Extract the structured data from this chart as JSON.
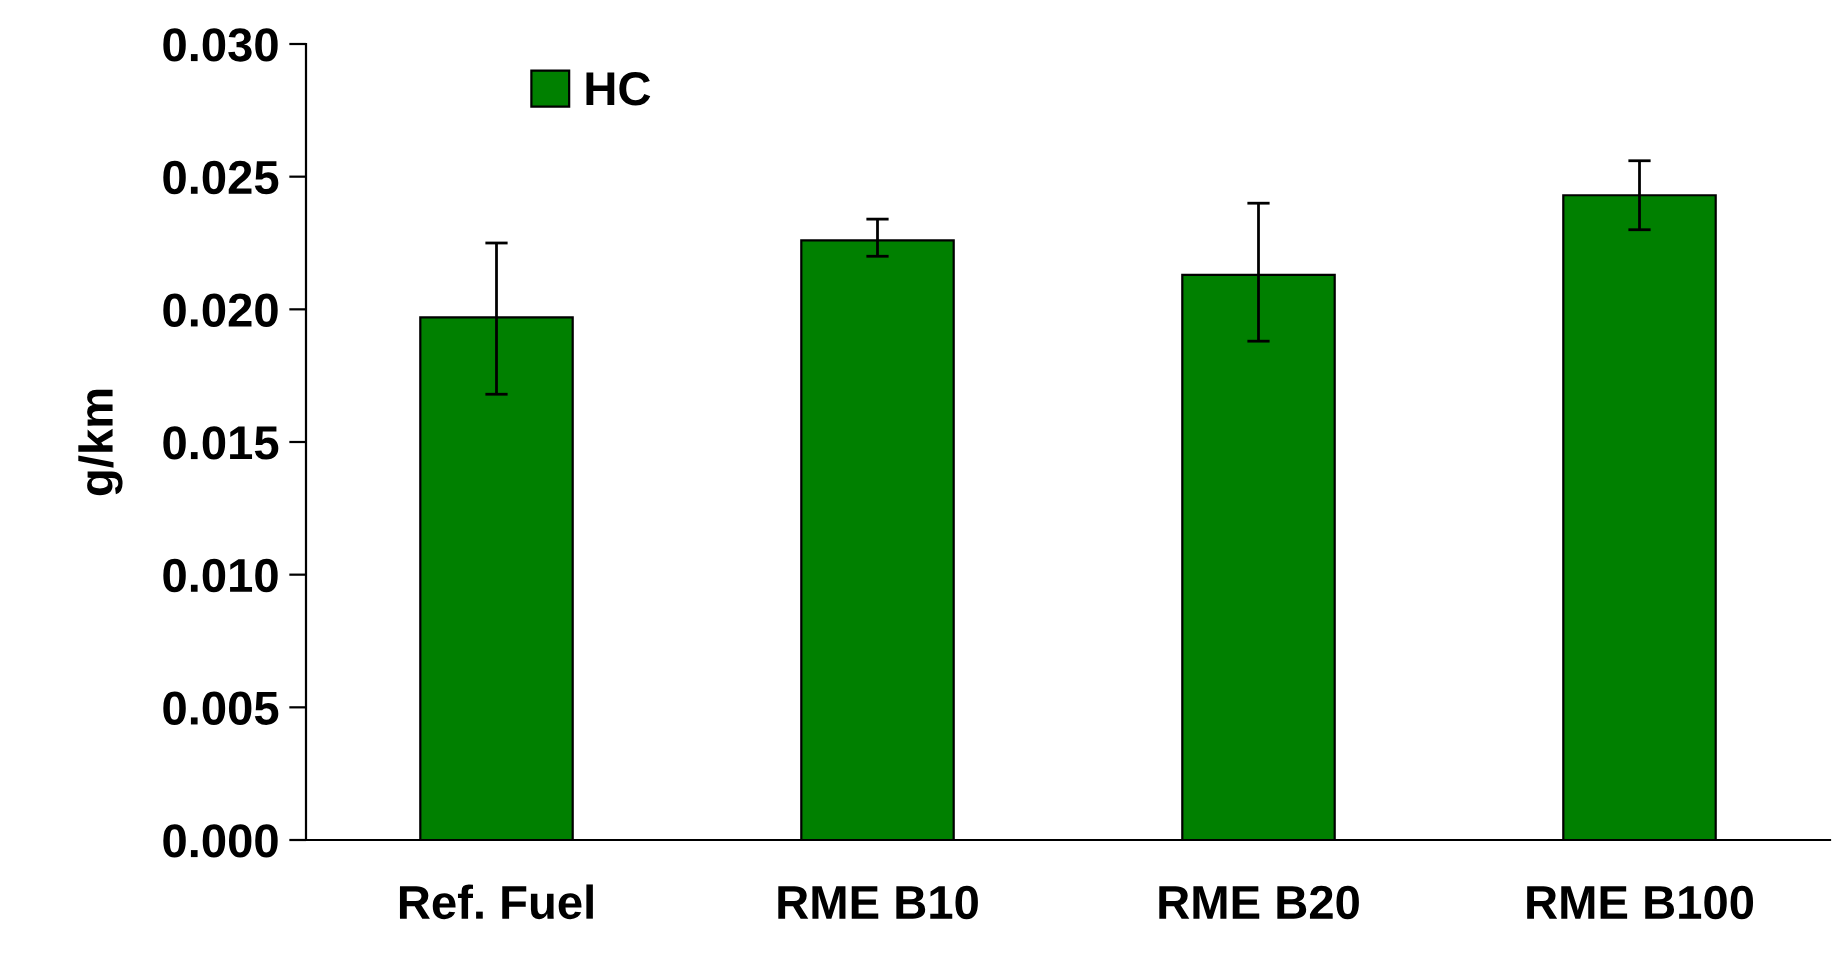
{
  "chart_data": {
    "type": "bar",
    "ylabel": "g/km",
    "categories": [
      "Ref. Fuel",
      "RME B10",
      "RME B20",
      "RME B100"
    ],
    "series": [
      {
        "name": "HC",
        "color": "#008000",
        "values": [
          0.0197,
          0.0226,
          0.0213,
          0.0243
        ],
        "errors": [
          [
            0.0168,
            0.0225
          ],
          [
            0.022,
            0.0234
          ],
          [
            0.0188,
            0.024
          ],
          [
            0.023,
            0.0256
          ]
        ]
      }
    ],
    "ylim": [
      0,
      0.03
    ],
    "yticks": [
      {
        "value": 0,
        "label": "0.000"
      },
      {
        "value": 0.005,
        "label": "0.005"
      },
      {
        "value": 0.01,
        "label": "0.010"
      },
      {
        "value": 0.015,
        "label": "0.015"
      },
      {
        "value": 0.02,
        "label": "0.020"
      },
      {
        "value": 0.025,
        "label": "0.025"
      },
      {
        "value": 0.03,
        "label": "0.030"
      }
    ],
    "grid": false,
    "legend": "top left"
  }
}
